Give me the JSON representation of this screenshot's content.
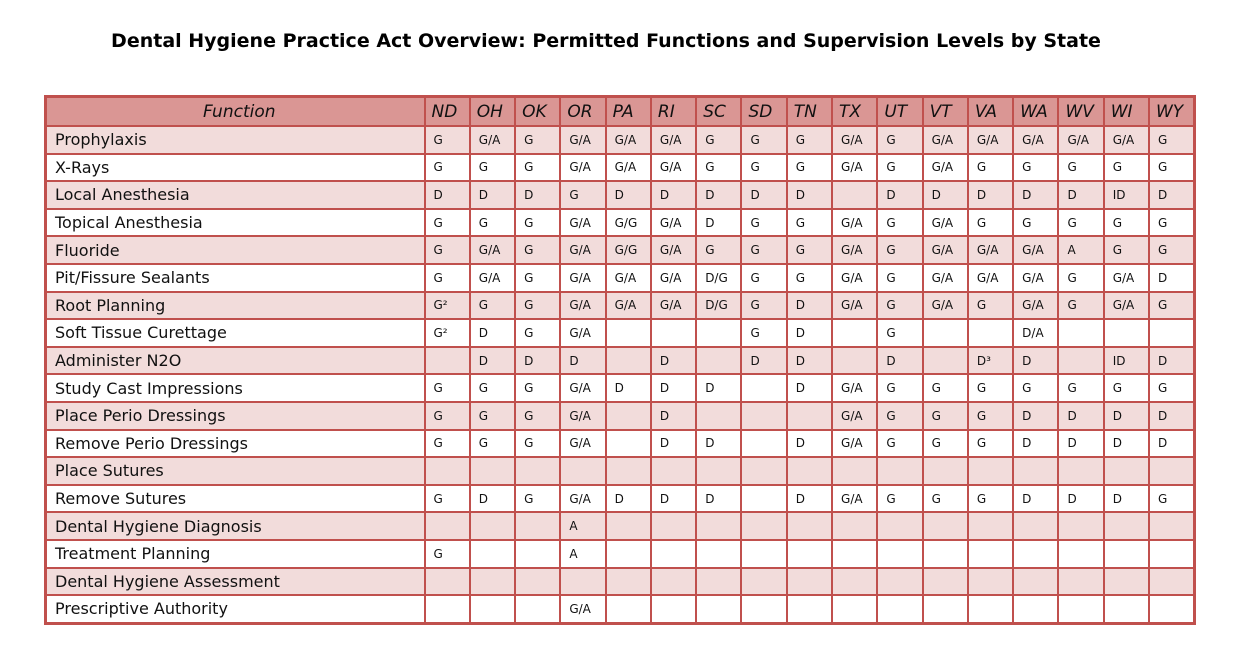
{
  "title": "Dental Hygiene Practice Act Overview: Permitted Functions and Supervision Levels by State",
  "table": {
    "header": [
      "Function",
      "ND",
      "OH",
      "OK",
      "OR",
      "PA",
      "RI",
      "SC",
      "SD",
      "TN",
      "TX",
      "UT",
      "VT",
      "VA",
      "WA",
      "WV",
      "WI",
      "WY"
    ],
    "rows": [
      [
        "Prophylaxis",
        "G",
        "G/A",
        "G",
        "G/A",
        "G/A",
        "G/A",
        "G",
        "G",
        "G",
        "G/A",
        "G",
        "G/A",
        "G/A",
        "G/A",
        "G/A",
        "G/A",
        "G"
      ],
      [
        "X-Rays",
        "G",
        "G",
        "G",
        "G/A",
        "G/A",
        "G/A",
        "G",
        "G",
        "G",
        "G/A",
        "G",
        "G/A",
        "G",
        "G",
        "G",
        "G",
        "G"
      ],
      [
        "Local Anesthesia",
        "D",
        "D",
        "D",
        "G",
        "D",
        "D",
        "D",
        "D",
        "D",
        null,
        "D",
        "D",
        "D",
        "D",
        "D",
        "ID",
        "D"
      ],
      [
        "Topical Anesthesia",
        "G",
        "G",
        "G",
        "G/A",
        "G/G",
        "G/A",
        "D",
        "G",
        "G",
        "G/A",
        "G",
        "G/A",
        "G",
        "G",
        "G",
        "G",
        "G"
      ],
      [
        "Fluoride",
        "G",
        "G/A",
        "G",
        "G/A",
        "G/G",
        "G/A",
        "G",
        "G",
        "G",
        "G/A",
        "G",
        "G/A",
        "G/A",
        "G/A",
        "A",
        "G",
        "G"
      ],
      [
        "Pit/Fissure Sealants",
        "G",
        "G/A",
        "G",
        "G/A",
        "G/A",
        "G/A",
        "D/G",
        "G",
        "G",
        "G/A",
        "G",
        "G/A",
        "G/A",
        "G/A",
        "G",
        "G/A",
        "D"
      ],
      [
        "Root Planning",
        "G²",
        "G",
        "G",
        "G/A",
        "G/A",
        "G/A",
        "D/G",
        "G",
        "D",
        "G/A",
        "G",
        "G/A",
        "G",
        "G/A",
        "G",
        "G/A",
        "G"
      ],
      [
        "Soft Tissue Curettage",
        "G²",
        "D",
        "G",
        "G/A",
        null,
        null,
        null,
        "G",
        "D",
        null,
        "G",
        null,
        null,
        "D/A",
        null,
        null,
        null
      ],
      [
        "Administer N2O",
        null,
        "D",
        "D",
        "D",
        null,
        "D",
        null,
        "D",
        "D",
        null,
        "D",
        null,
        "D³",
        "D",
        null,
        "ID",
        "D"
      ],
      [
        "Study Cast Impressions",
        "G",
        "G",
        "G",
        "G/A",
        "D",
        "D",
        "D",
        null,
        "D",
        "G/A",
        "G",
        "G",
        "G",
        "G",
        "G",
        "G",
        "G"
      ],
      [
        "Place Perio Dressings",
        "G",
        "G",
        "G",
        "G/A",
        null,
        "D",
        null,
        null,
        null,
        "G/A",
        "G",
        "G",
        "G",
        "D",
        "D",
        "D",
        "D"
      ],
      [
        "Remove Perio Dressings",
        "G",
        "G",
        "G",
        "G/A",
        null,
        "D",
        "D",
        null,
        "D",
        "G/A",
        "G",
        "G",
        "G",
        "D",
        "D",
        "D",
        "D"
      ],
      [
        "Place Sutures",
        null,
        null,
        null,
        null,
        null,
        null,
        null,
        null,
        null,
        null,
        null,
        null,
        null,
        null,
        null,
        null,
        null
      ],
      [
        "Remove Sutures",
        "G",
        "D",
        "G",
        "G/A",
        "D",
        "D",
        "D",
        null,
        "D",
        "G/A",
        "G",
        "G",
        "G",
        "D",
        "D",
        "D",
        "G"
      ],
      [
        "Dental Hygiene Diagnosis",
        null,
        null,
        null,
        "A",
        null,
        null,
        null,
        null,
        null,
        null,
        null,
        null,
        null,
        null,
        null,
        null,
        null
      ],
      [
        "Treatment Planning",
        "G",
        null,
        null,
        "A",
        null,
        null,
        null,
        null,
        null,
        null,
        null,
        null,
        null,
        null,
        null,
        null,
        null
      ],
      [
        "Dental Hygiene Assessment",
        null,
        null,
        null,
        null,
        null,
        null,
        null,
        null,
        null,
        null,
        null,
        null,
        null,
        null,
        null,
        null,
        null
      ],
      [
        "Prescriptive Authority",
        null,
        null,
        null,
        "G/A",
        null,
        null,
        null,
        null,
        null,
        null,
        null,
        null,
        null,
        null,
        null,
        null,
        null
      ]
    ]
  }
}
